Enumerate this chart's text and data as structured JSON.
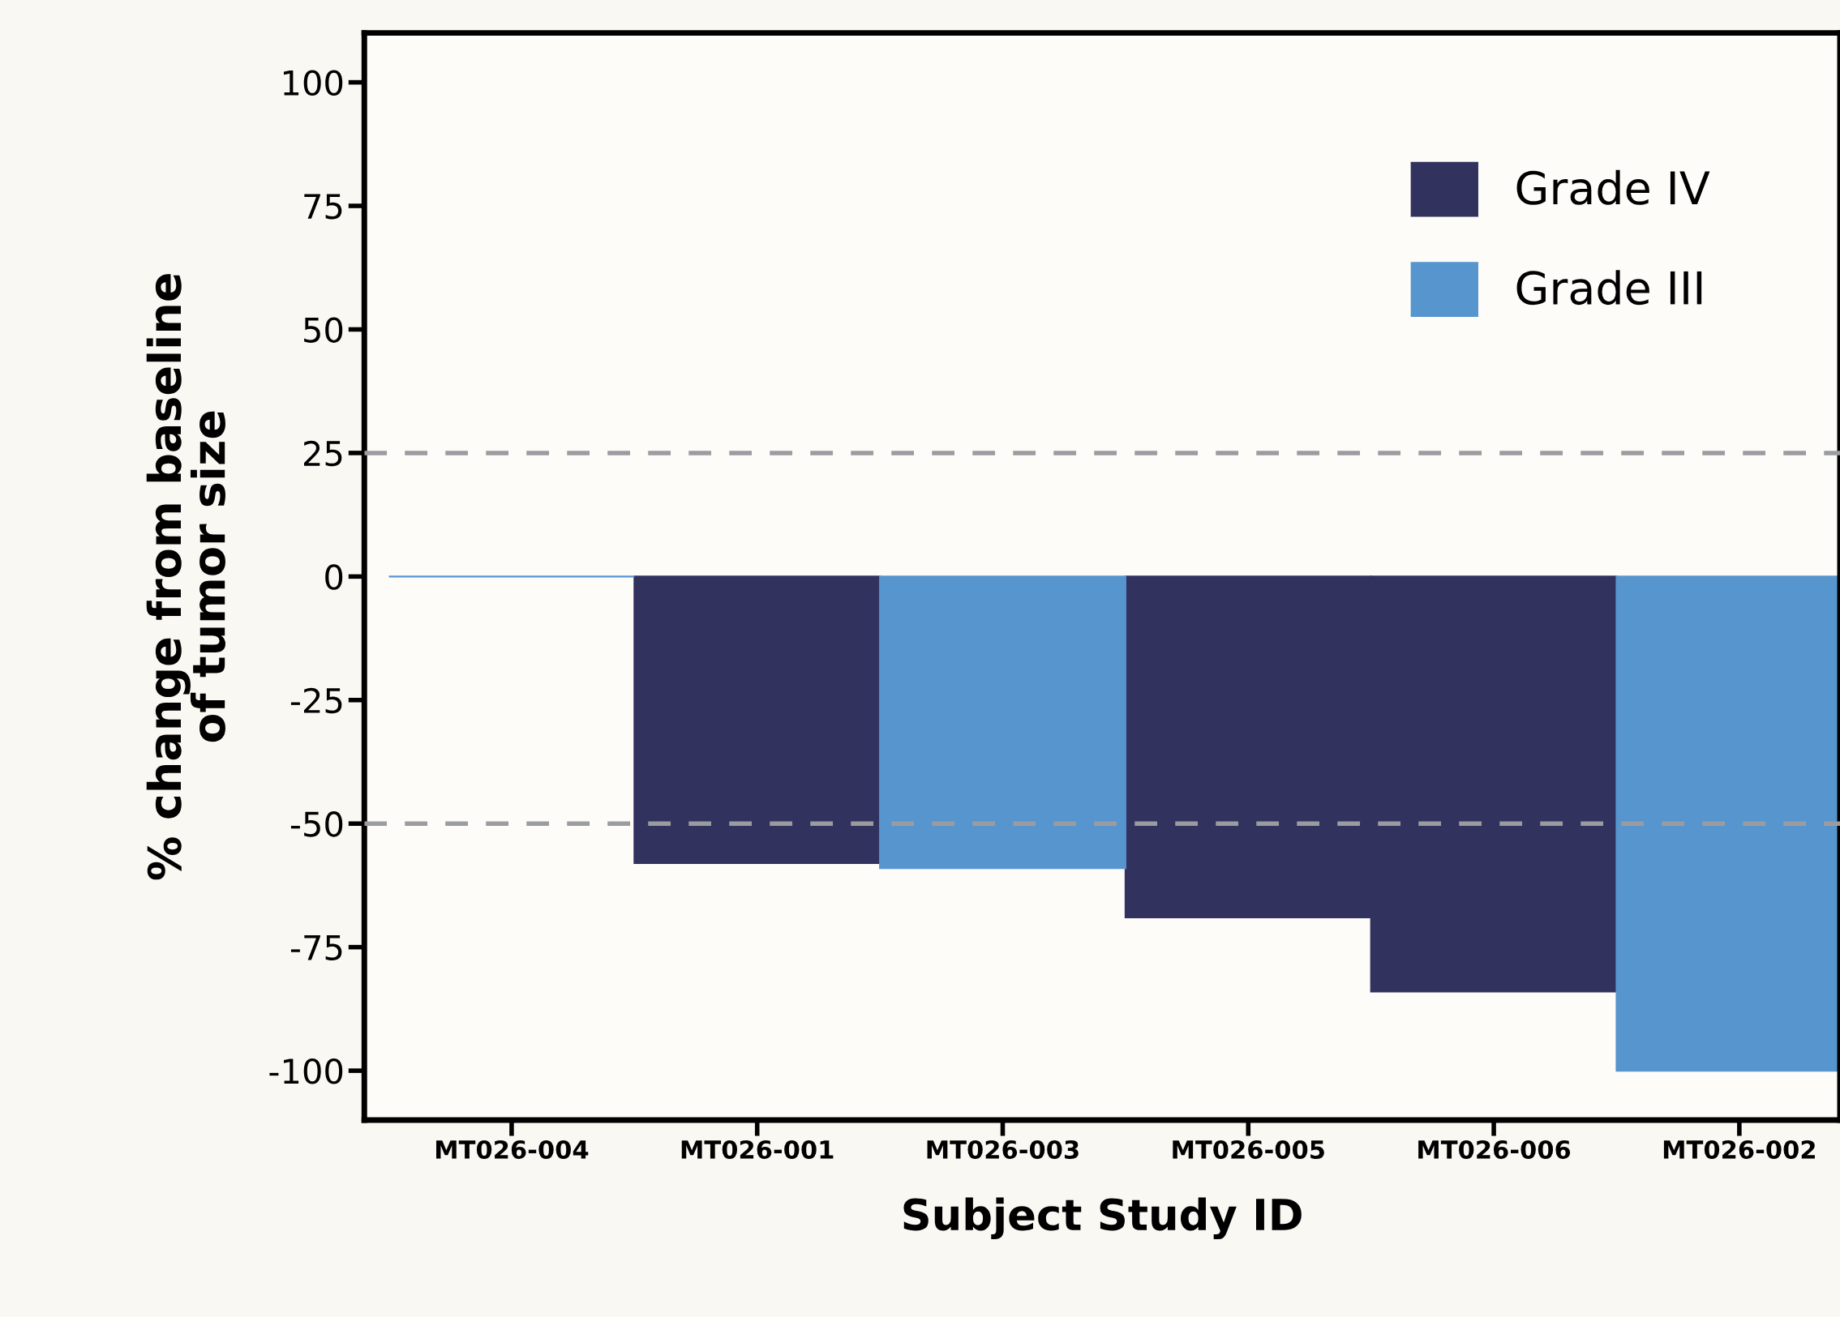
{
  "chart_data": {
    "type": "bar",
    "xlabel": "Subject Study ID",
    "ylabel": "% change from baseline\nof tumor size",
    "categories": [
      "MT026-004",
      "MT026-001",
      "MT026-003",
      "MT026-005",
      "MT026-006",
      "MT026-002"
    ],
    "series": [
      {
        "name": "Grade IV",
        "color": "#32325f",
        "values": [
          null,
          -58,
          null,
          -69,
          -84,
          null
        ]
      },
      {
        "name": "Grade III",
        "color": "#5795ce",
        "values": [
          0,
          null,
          -59,
          null,
          null,
          -100
        ]
      }
    ],
    "ylim": [
      -110,
      110
    ],
    "yticks": [
      -100,
      -75,
      -50,
      -25,
      0,
      25,
      50,
      75,
      100
    ],
    "ref_lines": [
      {
        "axis": "y",
        "value": 25,
        "color": "#9a9ca0",
        "line_style": "dashed"
      },
      {
        "axis": "y",
        "value": -50,
        "color": "#9a9ca0",
        "line_style": "dashed"
      }
    ],
    "grid": false,
    "legend": "top right"
  }
}
